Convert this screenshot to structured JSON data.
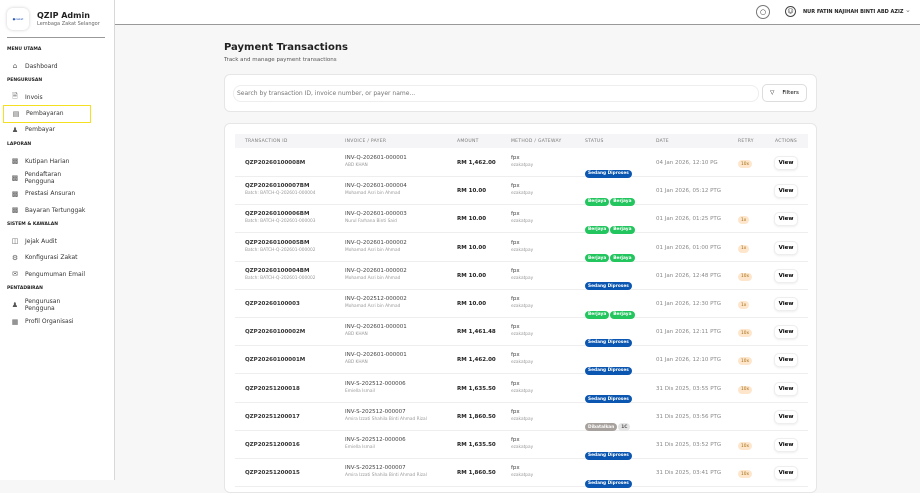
{
  "brand": {
    "logo": "zakat",
    "title": "QZIP Admin",
    "subtitle": "Lembaga Zakat Selangor"
  },
  "sidebar": {
    "sections": [
      {
        "label": "MENU UTAMA",
        "items": [
          {
            "label": "Dashboard",
            "icon": "home-icon"
          }
        ]
      },
      {
        "label": "PENGURUSAN",
        "items": [
          {
            "label": "Invois",
            "icon": "file-icon"
          },
          {
            "label": "Pembayaran",
            "icon": "card-icon",
            "active": true
          },
          {
            "label": "Pembayar",
            "icon": "users-icon"
          }
        ]
      },
      {
        "label": "LAPORAN",
        "items": [
          {
            "label": "Kutipan Harian",
            "icon": "chart-icon"
          },
          {
            "label": "Pendaftaran Pengguna",
            "icon": "chart-icon"
          },
          {
            "label": "Prestasi Ansuran",
            "icon": "chart-icon"
          },
          {
            "label": "Bayaran Tertunggak",
            "icon": "chart-icon"
          }
        ]
      },
      {
        "label": "SISTEM & KAWALAN",
        "items": [
          {
            "label": "Jejak Audit",
            "icon": "audit-icon"
          },
          {
            "label": "Konfigurasi Zakat",
            "icon": "gear-icon"
          },
          {
            "label": "Pengumuman Email",
            "icon": "mail-icon"
          }
        ]
      },
      {
        "label": "PENTADBIRAN",
        "items": [
          {
            "label": "Pengurusan Pengguna",
            "icon": "users-icon"
          },
          {
            "label": "Profil Organisasi",
            "icon": "building-icon"
          }
        ]
      }
    ]
  },
  "header": {
    "user": "NUR FATIN NAJIHAH BINTI ABD AZIZ"
  },
  "page": {
    "title": "Payment Transactions",
    "subtitle": "Track and manage payment transactions",
    "search_placeholder": "Search by transaction ID, invoice number, or payer name...",
    "filters_label": "Filters"
  },
  "colors": {
    "processing": "#0b56b0",
    "success": "#22c55e",
    "cancelled": "#a8a29e",
    "retry_bg": "#fde6cc"
  },
  "table": {
    "columns": [
      "TRANSACTION ID",
      "INVOICE / PAYER",
      "AMOUNT",
      "METHOD / GATEWAY",
      "STATUS",
      "DATE",
      "RETRY",
      "ACTIONS"
    ],
    "action_label": "View",
    "rows": [
      {
        "id": "QZP20260100008M",
        "batch": "",
        "invoice": "INV-Q-202601-000001",
        "payer": "ABD KHAN",
        "amount": "RM 1,462.00",
        "method": "fpx",
        "gateway": "ezakatpay",
        "status": [
          "Sedang Diproses"
        ],
        "date": "04 Jan 2026, 12:10 PG",
        "retry": "10x"
      },
      {
        "id": "QZP20260100007BM",
        "batch": "Batch: BATCH-Q-202601-000004",
        "invoice": "INV-Q-202601-000004",
        "payer": "Mohamad Asri bin Ahmad",
        "amount": "RM 10.00",
        "method": "fpx",
        "gateway": "ezakatpay",
        "status": [
          "Berjaya",
          "Berjaya"
        ],
        "date": "01 Jan 2026, 05:12 PTG",
        "retry": ""
      },
      {
        "id": "QZP20260100006BM",
        "batch": "Batch: BATCH-Q-202601-000003",
        "invoice": "INV-Q-202601-000003",
        "payer": "Nurul Farhana Binti Said",
        "amount": "RM 10.00",
        "method": "fpx",
        "gateway": "ezakatpay",
        "status": [
          "Berjaya",
          "Berjaya"
        ],
        "date": "01 Jan 2026, 01:25 PTG",
        "retry": "1x"
      },
      {
        "id": "QZP20260100005BM",
        "batch": "Batch: BATCH-Q-202601-000002",
        "invoice": "INV-Q-202601-000002",
        "payer": "Mohamad Asri bin Ahmad",
        "amount": "RM 10.00",
        "method": "fpx",
        "gateway": "ezakatpay",
        "status": [
          "Berjaya",
          "Berjaya"
        ],
        "date": "01 Jan 2026, 01:00 PTG",
        "retry": "1x"
      },
      {
        "id": "QZP20260100004BM",
        "batch": "Batch: BATCH-Q-202601-000002",
        "invoice": "INV-Q-202601-000002",
        "payer": "Mohamad Asri bin Ahmad",
        "amount": "RM 10.00",
        "method": "fpx",
        "gateway": "ezakatpay",
        "status": [
          "Sedang Diproses"
        ],
        "date": "01 Jan 2026, 12:48 PTG",
        "retry": "10x"
      },
      {
        "id": "QZP20260100003",
        "batch": "",
        "invoice": "INV-Q-202512-000002",
        "payer": "Mohamad Asri bin Ahmad",
        "amount": "RM 10.00",
        "method": "fpx",
        "gateway": "ezakatpay",
        "status": [
          "Berjaya",
          "Berjaya"
        ],
        "date": "01 Jan 2026, 12:30 PTG",
        "retry": "1x"
      },
      {
        "id": "QZP20260100002M",
        "batch": "",
        "invoice": "INV-Q-202601-000001",
        "payer": "ABD KHAN",
        "amount": "RM 1,461.48",
        "method": "fpx",
        "gateway": "ezakatpay",
        "status": [
          "Sedang Diproses"
        ],
        "date": "01 Jan 2026, 12:11 PTG",
        "retry": "10x"
      },
      {
        "id": "QZP20260100001M",
        "batch": "",
        "invoice": "INV-Q-202601-000001",
        "payer": "ABD KHAN",
        "amount": "RM 1,462.00",
        "method": "fpx",
        "gateway": "ezakatpay",
        "status": [
          "Sedang Diproses"
        ],
        "date": "01 Jan 2026, 12:10 PTG",
        "retry": "10x"
      },
      {
        "id": "QZP20251200018",
        "batch": "",
        "invoice": "INV-S-202512-000006",
        "payer": "Emiella Ismail",
        "amount": "RM 1,635.50",
        "method": "fpx",
        "gateway": "ezakatpay",
        "status": [
          "Sedang Diproses"
        ],
        "date": "31 Dis 2025, 03:55 PTG",
        "retry": "10x"
      },
      {
        "id": "QZP20251200017",
        "batch": "",
        "invoice": "INV-S-202512-000007",
        "payer": "Amira Izzati Shahila Binti Ahmad Rizal",
        "amount": "RM 1,860.50",
        "method": "fpx",
        "gateway": "ezakatpay",
        "status": [
          "Dibatalkan",
          "1C"
        ],
        "date": "31 Dis 2025, 03:56 PTG",
        "retry": ""
      },
      {
        "id": "QZP20251200016",
        "batch": "",
        "invoice": "INV-S-202512-000006",
        "payer": "Emiella Ismail",
        "amount": "RM 1,635.50",
        "method": "fpx",
        "gateway": "ezakatpay",
        "status": [
          "Sedang Diproses"
        ],
        "date": "31 Dis 2025, 03:52 PTG",
        "retry": "10x"
      },
      {
        "id": "QZP20251200015",
        "batch": "",
        "invoice": "INV-S-202512-000007",
        "payer": "Amira Izzati Shahila Binti Ahmad Rizal",
        "amount": "RM 1,860.50",
        "method": "fpx",
        "gateway": "ezakatpay",
        "status": [
          "Sedang Diproses"
        ],
        "date": "31 Dis 2025, 03:41 PTG",
        "retry": "10x"
      }
    ]
  }
}
